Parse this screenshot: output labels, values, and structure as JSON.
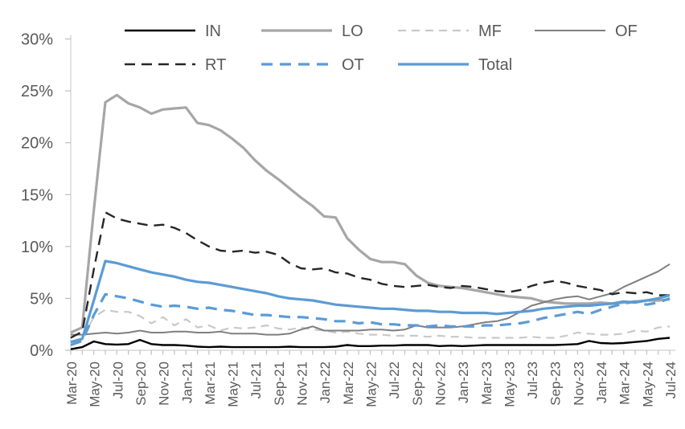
{
  "chart_data": {
    "type": "line",
    "title": "",
    "background": "#FFFFFF",
    "grid": false,
    "legend": {
      "position": "top",
      "rows": [
        [
          "IN",
          "LO",
          "MF",
          "OF"
        ],
        [
          "RT",
          "OT",
          "Total"
        ]
      ]
    },
    "axis": {
      "text_color": "#595959",
      "line_color": "#D9D9D9",
      "tick_color": "#BFBFBF",
      "y_min": 0,
      "y_max": 30,
      "y_step": 5,
      "y_tick_labels": [
        "0%",
        "5%",
        "10%",
        "15%",
        "20%",
        "25%",
        "30%"
      ],
      "x_tick_every": 2
    },
    "x": [
      "Mar-20",
      "Apr-20",
      "May-20",
      "Jun-20",
      "Jul-20",
      "Aug-20",
      "Sep-20",
      "Oct-20",
      "Nov-20",
      "Dec-20",
      "Jan-21",
      "Feb-21",
      "Mar-21",
      "Apr-21",
      "May-21",
      "Jun-21",
      "Jul-21",
      "Aug-21",
      "Sep-21",
      "Oct-21",
      "Nov-21",
      "Dec-21",
      "Jan-22",
      "Feb-22",
      "Mar-22",
      "Apr-22",
      "May-22",
      "Jun-22",
      "Jul-22",
      "Aug-22",
      "Sep-22",
      "Oct-22",
      "Nov-22",
      "Dec-22",
      "Jan-23",
      "Feb-23",
      "Mar-23",
      "Apr-23",
      "May-23",
      "Jun-23",
      "Jul-23",
      "Aug-23",
      "Sep-23",
      "Oct-23",
      "Nov-23",
      "Dec-23",
      "Jan-24",
      "Feb-24",
      "Mar-24",
      "Apr-24",
      "May-24",
      "Jun-24",
      "Jul-24"
    ],
    "series": [
      {
        "name": "IN",
        "color": "#000000",
        "dash": "",
        "width": 2.4,
        "values": [
          0.1,
          0.3,
          0.85,
          0.6,
          0.55,
          0.6,
          1.0,
          0.6,
          0.5,
          0.5,
          0.45,
          0.35,
          0.3,
          0.35,
          0.3,
          0.3,
          0.3,
          0.3,
          0.3,
          0.35,
          0.3,
          0.3,
          0.3,
          0.35,
          0.5,
          0.4,
          0.4,
          0.45,
          0.45,
          0.5,
          0.5,
          0.5,
          0.4,
          0.45,
          0.4,
          0.45,
          0.5,
          0.5,
          0.5,
          0.5,
          0.5,
          0.5,
          0.5,
          0.55,
          0.6,
          0.9,
          0.7,
          0.65,
          0.7,
          0.8,
          0.9,
          1.1,
          1.2
        ]
      },
      {
        "name": "LO",
        "color": "#A6A6A6",
        "dash": "",
        "width": 3.2,
        "values": [
          1.7,
          2.2,
          13.5,
          23.9,
          24.6,
          23.8,
          23.4,
          22.8,
          23.2,
          23.3,
          23.4,
          21.9,
          21.7,
          21.2,
          20.4,
          19.5,
          18.3,
          17.3,
          16.5,
          15.6,
          14.7,
          13.9,
          12.9,
          12.8,
          10.8,
          9.7,
          8.8,
          8.5,
          8.5,
          8.3,
          7.2,
          6.5,
          6.2,
          6.1,
          6.0,
          5.8,
          5.6,
          5.4,
          5.2,
          5.1,
          5.0,
          4.7,
          4.6,
          4.5,
          4.5,
          4.5,
          4.6,
          4.5,
          4.6,
          4.7,
          4.8,
          4.8,
          4.9
        ]
      },
      {
        "name": "MF",
        "color": "#C9C9C9",
        "dash": "10 7",
        "width": 2.2,
        "values": [
          0.8,
          1.2,
          3.2,
          3.9,
          3.7,
          3.7,
          3.3,
          2.6,
          3.2,
          2.4,
          3.0,
          2.2,
          2.4,
          1.9,
          2.2,
          2.1,
          2.2,
          2.4,
          2.1,
          2.0,
          2.2,
          2.0,
          1.9,
          1.7,
          1.8,
          1.6,
          1.5,
          1.5,
          1.4,
          1.4,
          1.4,
          1.3,
          1.4,
          1.3,
          1.3,
          1.2,
          1.2,
          1.2,
          1.2,
          1.2,
          1.3,
          1.2,
          1.2,
          1.4,
          1.7,
          1.6,
          1.5,
          1.5,
          1.6,
          1.9,
          1.8,
          2.2,
          2.3
        ]
      },
      {
        "name": "OF",
        "color": "#7F7F7F",
        "dash": "",
        "width": 2,
        "values": [
          1.5,
          1.5,
          1.6,
          1.7,
          1.6,
          1.7,
          1.9,
          1.7,
          1.7,
          1.8,
          1.8,
          1.7,
          1.7,
          1.8,
          1.6,
          1.6,
          1.6,
          1.5,
          1.5,
          1.6,
          2.0,
          2.3,
          1.9,
          1.9,
          1.9,
          1.9,
          2.0,
          2.0,
          1.9,
          2.0,
          2.4,
          2.2,
          2.2,
          2.2,
          2.3,
          2.5,
          2.7,
          2.8,
          3.1,
          3.7,
          4.3,
          4.6,
          4.9,
          5.1,
          5.2,
          4.9,
          5.2,
          5.5,
          6.1,
          6.6,
          7.1,
          7.6,
          8.3
        ]
      },
      {
        "name": "RT",
        "color": "#262626",
        "dash": "13 8",
        "width": 2.4,
        "values": [
          1.2,
          1.8,
          7.8,
          13.3,
          12.7,
          12.4,
          12.2,
          12.0,
          12.1,
          11.8,
          11.3,
          10.6,
          10.0,
          9.6,
          9.5,
          9.6,
          9.4,
          9.5,
          9.2,
          8.4,
          7.9,
          7.8,
          7.9,
          7.5,
          7.4,
          7.0,
          6.8,
          6.4,
          6.2,
          6.1,
          6.2,
          6.3,
          6.1,
          6.0,
          6.2,
          6.1,
          5.9,
          5.7,
          5.6,
          5.8,
          6.2,
          6.5,
          6.7,
          6.5,
          6.2,
          6.0,
          5.8,
          5.4,
          5.6,
          5.5,
          5.6,
          5.3,
          5.3
        ]
      },
      {
        "name": "OT",
        "color": "#5B9BD5",
        "dash": "14 9",
        "width": 3.2,
        "values": [
          0.5,
          0.9,
          3.4,
          5.4,
          5.2,
          5.0,
          4.7,
          4.4,
          4.2,
          4.3,
          4.2,
          4.0,
          4.1,
          3.9,
          3.8,
          3.6,
          3.4,
          3.4,
          3.3,
          3.2,
          3.2,
          3.1,
          3.0,
          2.8,
          2.8,
          2.6,
          2.7,
          2.5,
          2.5,
          2.4,
          2.4,
          2.3,
          2.4,
          2.3,
          2.3,
          2.3,
          2.4,
          2.4,
          2.5,
          2.6,
          2.8,
          3.1,
          3.3,
          3.5,
          3.7,
          3.5,
          3.9,
          4.2,
          4.5,
          4.7,
          4.4,
          4.6,
          5.0
        ]
      },
      {
        "name": "Total",
        "color": "#5B9BD5",
        "dash": "",
        "width": 3.2,
        "values": [
          0.8,
          1.1,
          4.8,
          8.6,
          8.4,
          8.1,
          7.8,
          7.5,
          7.3,
          7.1,
          6.8,
          6.6,
          6.5,
          6.3,
          6.1,
          5.9,
          5.7,
          5.5,
          5.2,
          5.0,
          4.9,
          4.8,
          4.6,
          4.4,
          4.3,
          4.2,
          4.1,
          4.0,
          4.0,
          3.9,
          3.8,
          3.8,
          3.7,
          3.7,
          3.6,
          3.6,
          3.6,
          3.5,
          3.6,
          3.7,
          3.8,
          4.0,
          4.1,
          4.2,
          4.3,
          4.3,
          4.4,
          4.5,
          4.7,
          4.6,
          4.8,
          5.0,
          5.3
        ]
      }
    ]
  }
}
